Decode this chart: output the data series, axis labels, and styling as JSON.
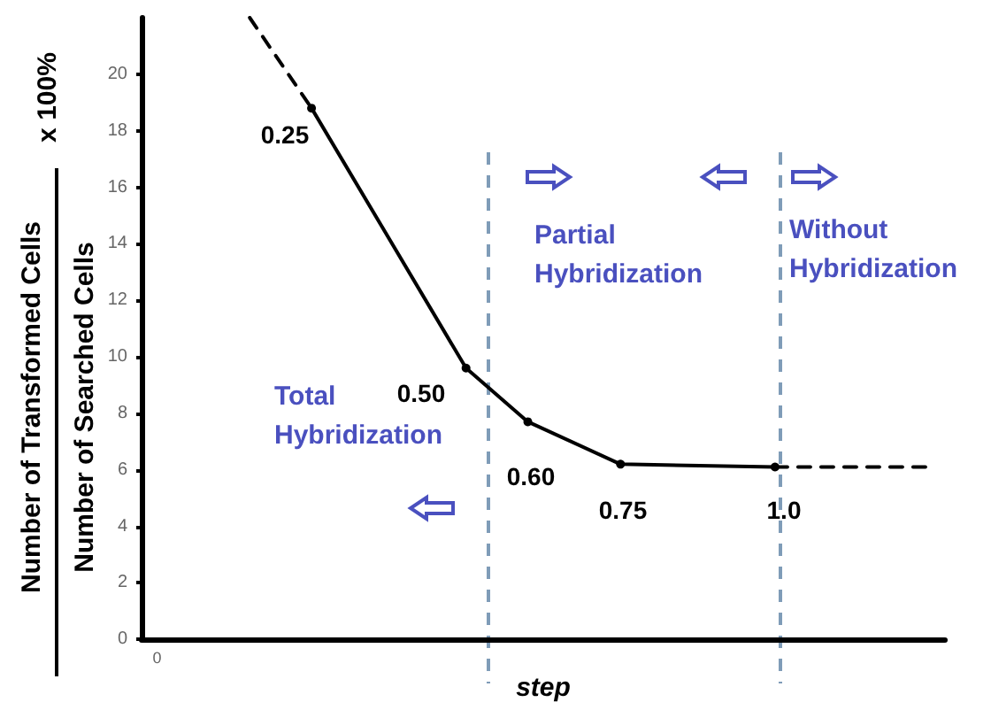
{
  "chart_data": {
    "type": "line",
    "xlabel": "step",
    "ylabel": "Number of Transformed Cells\nNumber of Searched Cells",
    "categories": [
      "0",
      null,
      null,
      null,
      null,
      null,
      null,
      null,
      null,
      null,
      null,
      null,
      null,
      null,
      null,
      null,
      null,
      null,
      null,
      null,
      null,
      null,
      null,
      null,
      null,
      null
    ],
    "ylim": [
      0,
      22
    ],
    "yticks": [
      0,
      2,
      4,
      6,
      8,
      10,
      12,
      14,
      16,
      18,
      20
    ],
    "grid": false,
    "marker": "circle",
    "series": [
      {
        "color": "#000000",
        "values": [
          null,
          null,
          null,
          null,
          null,
          18.8,
          null,
          null,
          null,
          null,
          9.6,
          null,
          7.7,
          null,
          null,
          6.2,
          null,
          null,
          null,
          null,
          6.1,
          null,
          null,
          null,
          null,
          null
        ],
        "line_style": "solid"
      },
      {
        "color": "#000000",
        "values": [
          null,
          null,
          null,
          22,
          null,
          18.8,
          null,
          null,
          null,
          null,
          null,
          null,
          null,
          null,
          null,
          null,
          null,
          null,
          null,
          null,
          null,
          null,
          null,
          null,
          null,
          null
        ],
        "line_style": "dashed",
        "marker": "none"
      },
      {
        "color": "#000000",
        "values": [
          null,
          null,
          null,
          null,
          null,
          null,
          null,
          null,
          null,
          null,
          null,
          null,
          null,
          null,
          null,
          null,
          null,
          null,
          null,
          null,
          6.1,
          null,
          null,
          null,
          null,
          6.1
        ],
        "line_style": "dashed",
        "marker": "none"
      }
    ],
    "annotations": [
      "x 100%",
      "0.25",
      "0.50",
      "0.60",
      "0.75",
      "1.0",
      "Total\nHybridization",
      "Partial\nHybridization",
      "Without\nHybridization"
    ]
  }
}
